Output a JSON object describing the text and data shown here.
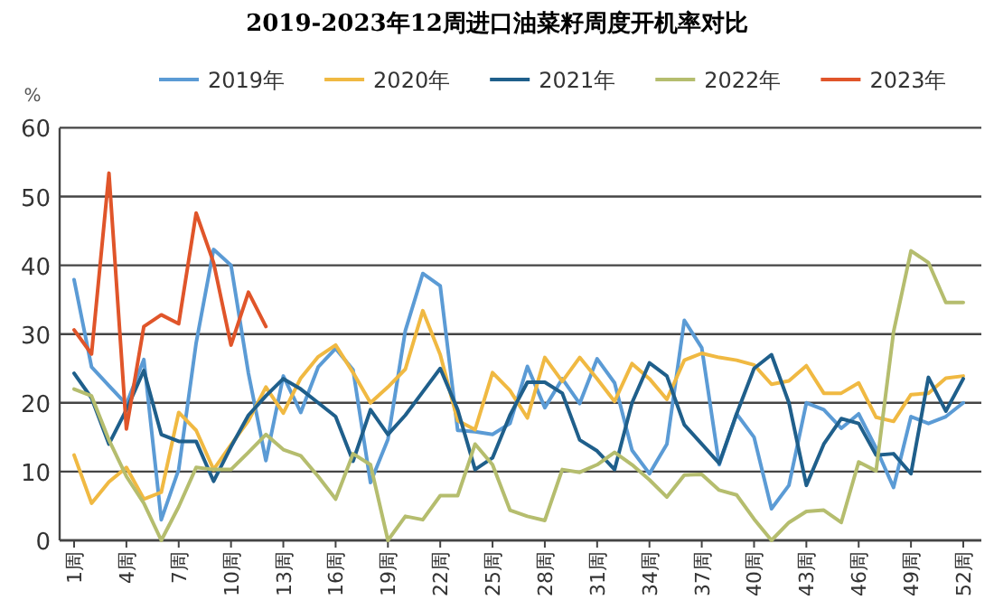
{
  "chart_data": {
    "type": "line",
    "title": "2019-2023年12周进口油菜籽周度开机率对比",
    "ylabel": "%",
    "categories": [
      "1周",
      null,
      null,
      "4周",
      null,
      null,
      "7周",
      null,
      null,
      "10周",
      null,
      null,
      "13周",
      null,
      null,
      "16周",
      null,
      null,
      "19周",
      null,
      null,
      "22周",
      null,
      null,
      "25周",
      null,
      null,
      "28周",
      null,
      null,
      "31周",
      null,
      null,
      "34周",
      null,
      null,
      "37周",
      null,
      null,
      "40周",
      null,
      null,
      "43周",
      null,
      null,
      "46周",
      null,
      null,
      "49周",
      null,
      null,
      "52周"
    ],
    "series": [
      {
        "name": "2019年",
        "color": "#5b9bd5",
        "values": [
          37.9,
          25.2,
          22.5,
          19.8,
          26.3,
          3,
          10.3,
          28.7,
          42.3,
          40,
          24.3,
          11.6,
          23.9,
          18.6,
          25.2,
          27.9,
          24.8,
          8.4,
          14.7,
          30.5,
          38.8,
          37,
          16,
          15.8,
          15.4,
          17,
          25.3,
          19.3,
          23.5,
          19.9,
          26.4,
          22.9,
          13.1,
          9.7,
          14,
          32,
          28,
          11,
          18.4,
          15,
          4.6,
          8,
          20,
          19,
          16.3,
          18.4,
          13.4,
          7.7,
          18,
          17,
          18,
          20
        ]
      },
      {
        "name": "2020年",
        "color": "#f0b942",
        "values": [
          12.4,
          5.4,
          8.5,
          10.6,
          6,
          7,
          18.6,
          16,
          10.3,
          13.9,
          17.4,
          22.3,
          18.5,
          23.6,
          26.7,
          28.4,
          24.4,
          20,
          22.3,
          24.9,
          33.4,
          27,
          17.4,
          16.1,
          24.4,
          21.8,
          17.8,
          26.6,
          23.1,
          26.6,
          23.5,
          20.2,
          25.7,
          23.5,
          20.5,
          26.2,
          27.2,
          26.6,
          26.2,
          25.5,
          22.7,
          23.2,
          25.4,
          21.4,
          21.4,
          22.9,
          17.9,
          17.3,
          21.2,
          21.4,
          23.6,
          23.9
        ]
      },
      {
        "name": "2021年",
        "color": "#1f5f8b",
        "values": [
          24.3,
          20.7,
          14,
          19,
          24.7,
          15.4,
          14.4,
          14.4,
          8.6,
          13.6,
          18.2,
          21,
          23.5,
          22,
          20,
          18,
          11.5,
          19,
          15.4,
          18.2,
          21.6,
          25,
          19,
          10.3,
          12,
          18.2,
          23,
          23,
          21.4,
          14.6,
          13,
          10.3,
          20,
          25.8,
          23.9,
          16.8,
          14,
          11.2,
          18.4,
          25,
          27,
          20,
          8,
          14,
          17.7,
          17,
          12.4,
          12.6,
          9.7,
          23.7,
          18.8,
          23.5
        ]
      },
      {
        "name": "2022年",
        "color": "#b5bd6e",
        "values": [
          22,
          21,
          14.6,
          9.3,
          5.4,
          0,
          4.9,
          10.6,
          10.3,
          10.3,
          12.8,
          15.4,
          13.2,
          12.3,
          9.3,
          6,
          12.6,
          11,
          0,
          3.5,
          3,
          6.5,
          6.5,
          14,
          11,
          4.4,
          3.5,
          2.9,
          10.3,
          9.9,
          11,
          12.8,
          11,
          8.8,
          6.3,
          9.5,
          9.6,
          7.3,
          6.6,
          3.1,
          0,
          2.6,
          4.2,
          4.4,
          2.6,
          11.4,
          10.1,
          30.3,
          42.1,
          40.4,
          34.6,
          34.6
        ]
      },
      {
        "name": "2023年",
        "color": "#e0552a",
        "values": [
          30.6,
          27.1,
          53.4,
          16.2,
          31.1,
          32.8,
          31.5,
          47.6,
          40.4,
          28.4,
          36.1,
          31.1,
          null,
          null,
          null,
          null,
          null,
          null,
          null,
          null,
          null,
          null,
          null,
          null,
          null,
          null,
          null,
          null,
          null,
          null,
          null,
          null,
          null,
          null,
          null,
          null,
          null,
          null,
          null,
          null,
          null,
          null,
          null,
          null,
          null,
          null,
          null,
          null,
          null,
          null,
          null,
          null
        ]
      }
    ],
    "ylim": [
      0,
      60
    ],
    "yticks": [
      0,
      10,
      20,
      30,
      40,
      50,
      60
    ],
    "grid": "y",
    "legend": "top",
    "marker": "none",
    "line_style": "solid"
  }
}
